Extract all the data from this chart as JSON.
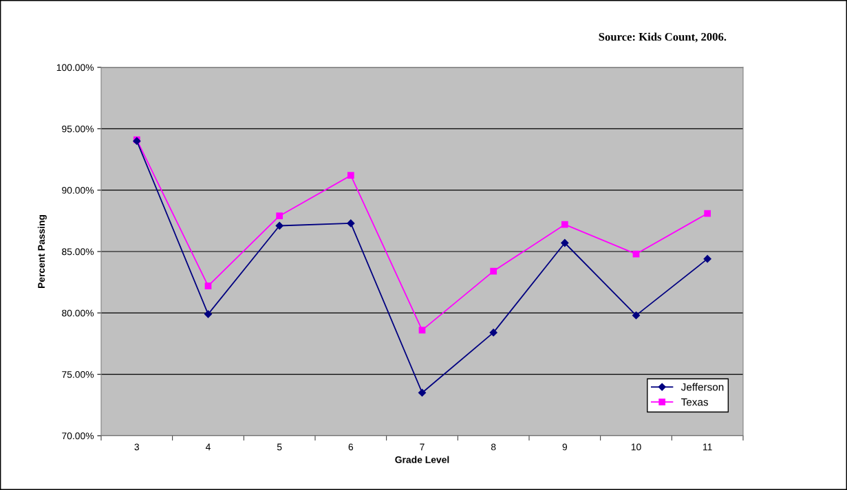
{
  "chart_data": {
    "type": "line",
    "xlabel": "Grade Level",
    "ylabel": "Percent Passing",
    "annotations": [
      "Source: Kids Count, 2006."
    ],
    "categories": [
      "3",
      "4",
      "5",
      "6",
      "7",
      "8",
      "9",
      "10",
      "11"
    ],
    "series": [
      {
        "name": "Jefferson",
        "color": "#000080",
        "marker": "diamond",
        "values": [
          94.0,
          79.9,
          87.1,
          87.3,
          73.5,
          78.4,
          85.7,
          79.8,
          84.4
        ]
      },
      {
        "name": "Texas",
        "color": "#ff00ff",
        "marker": "square",
        "values": [
          94.1,
          82.2,
          87.9,
          91.2,
          78.6,
          83.4,
          87.2,
          84.8,
          88.1
        ]
      }
    ],
    "ylim": [
      70,
      100
    ],
    "yticks": [
      {
        "value": 70,
        "label": "70.00%"
      },
      {
        "value": 75,
        "label": "75.00%"
      },
      {
        "value": 80,
        "label": "80.00%"
      },
      {
        "value": 85,
        "label": "85.00%"
      },
      {
        "value": 90,
        "label": "90.00%"
      },
      {
        "value": 95,
        "label": "95.00%"
      },
      {
        "value": 100,
        "label": "100.00%"
      }
    ],
    "grid": "y",
    "legend": "bottom right",
    "line_style": "solid"
  }
}
